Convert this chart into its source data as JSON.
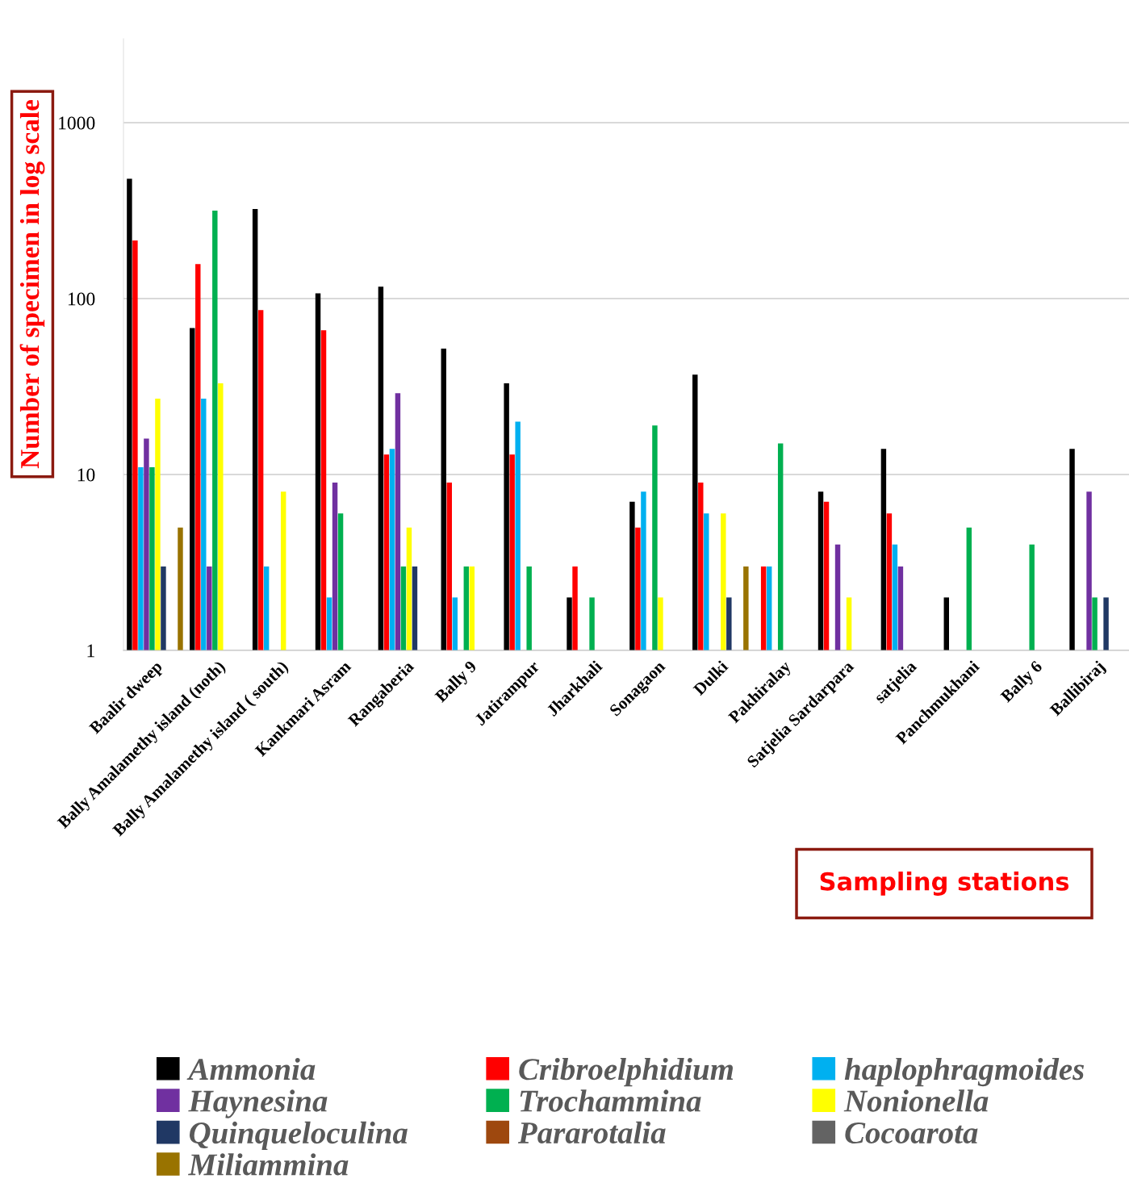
{
  "chart_data": {
    "type": "bar",
    "ylabel": "Number of specimen in log scale",
    "xlabel": "Sampling stations",
    "categories": [
      "Baalir dweep",
      "Bally Amalamethy island (noth)",
      "Bally Amalamethy island ( south)",
      "Kankmari Asram",
      "Rangaberia",
      "Bally 9",
      "Jatirampur",
      "Jharkhali",
      "Sonagaon",
      "Dulki",
      "Pakhiralay",
      "Satjelia Sardarpara",
      "satjelia",
      "Panchmukhani",
      "Bally 6",
      "Ballibiraj"
    ],
    "series": [
      {
        "name": "Ammonia",
        "color": "#000000",
        "values": [
          480,
          68,
          323,
          107,
          117,
          52,
          33,
          2,
          7,
          37,
          null,
          8,
          14,
          2,
          null,
          14
        ]
      },
      {
        "name": "Cribroelphidium",
        "color": "#ff0000",
        "values": [
          214,
          157,
          86,
          66,
          13,
          9,
          13,
          3,
          5,
          9,
          3,
          7,
          6,
          null,
          null,
          null
        ]
      },
      {
        "name": "haplophragmoides",
        "color": "#00b0f0",
        "values": [
          11,
          27,
          3,
          2,
          14,
          2,
          20,
          null,
          8,
          6,
          3,
          null,
          4,
          null,
          null,
          null
        ]
      },
      {
        "name": "Haynesina",
        "color": "#7030a0",
        "values": [
          16,
          3,
          null,
          9,
          29,
          null,
          null,
          null,
          null,
          null,
          null,
          4,
          3,
          null,
          null,
          8
        ]
      },
      {
        "name": "Trochammina",
        "color": "#00b050",
        "values": [
          11,
          316,
          null,
          6,
          3,
          3,
          3,
          2,
          19,
          null,
          15,
          null,
          null,
          5,
          4,
          2
        ]
      },
      {
        "name": "Nonionella",
        "color": "#ffff00",
        "values": [
          27,
          33,
          8,
          null,
          5,
          3,
          null,
          null,
          2,
          6,
          null,
          2,
          null,
          null,
          null,
          null
        ]
      },
      {
        "name": "Quinqueloculina",
        "color": "#203864",
        "values": [
          3,
          null,
          null,
          null,
          3,
          null,
          null,
          null,
          null,
          2,
          null,
          null,
          null,
          null,
          null,
          2
        ]
      },
      {
        "name": "Pararotalia",
        "color": "#9e480e",
        "values": [
          null,
          null,
          null,
          null,
          null,
          null,
          null,
          null,
          null,
          null,
          null,
          null,
          null,
          null,
          null,
          null
        ]
      },
      {
        "name": "Cocoarota",
        "color": "#636363",
        "values": [
          null,
          null,
          null,
          null,
          null,
          null,
          null,
          null,
          null,
          null,
          null,
          null,
          null,
          null,
          null,
          null
        ]
      },
      {
        "name": "Miliammina",
        "color": "#997300",
        "values": [
          5,
          null,
          null,
          null,
          null,
          null,
          null,
          null,
          null,
          3,
          null,
          null,
          null,
          null,
          null,
          null
        ]
      }
    ],
    "log": "y",
    "ylim": [
      1,
      3000
    ],
    "yticks": [
      1,
      10,
      100,
      1000
    ],
    "grid": "y",
    "legend": "bottom"
  }
}
